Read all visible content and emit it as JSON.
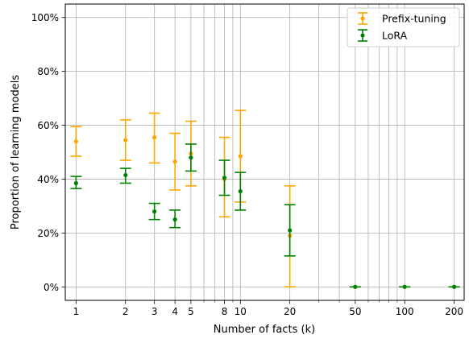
{
  "chart_data": {
    "type": "scatter",
    "title": "",
    "xlabel": "Number of facts (k)",
    "ylabel": "Proportion of learning models",
    "xscale": "log",
    "xlim": [
      0.86,
      230
    ],
    "ylim": [
      -5,
      105
    ],
    "xticks": [
      1,
      2,
      3,
      4,
      5,
      8,
      10,
      20,
      50,
      100,
      200
    ],
    "xtick_labels": [
      "1",
      "2",
      "3",
      "4",
      "5",
      "8",
      "10",
      "20",
      "50",
      "100",
      "200"
    ],
    "yticks": [
      0,
      20,
      40,
      60,
      80,
      100
    ],
    "ytick_labels": [
      "0%",
      "20%",
      "40%",
      "60%",
      "80%",
      "100%"
    ],
    "grid": true,
    "legend_position": "top-right",
    "series": [
      {
        "name": "Prefix-tuning",
        "color": "#ffa500",
        "x": [
          1,
          2,
          3,
          4,
          5,
          8,
          10,
          20
        ],
        "y": [
          54,
          54.5,
          55.5,
          46.5,
          49.5,
          40,
          48.5,
          19
        ],
        "err_low": [
          48.5,
          47,
          46,
          36,
          37.5,
          26,
          31.5,
          0
        ],
        "err_high": [
          59.5,
          62,
          64.5,
          57,
          61.5,
          55.5,
          65.5,
          37.5
        ]
      },
      {
        "name": "LoRA",
        "color": "#008000",
        "x": [
          1,
          2,
          3,
          4,
          5,
          8,
          10,
          20,
          50,
          100,
          200
        ],
        "y": [
          38.5,
          41.5,
          28,
          25,
          48,
          40.5,
          35.5,
          21,
          0,
          0,
          0
        ],
        "err_low": [
          36.5,
          38.5,
          25,
          22,
          43,
          34,
          28.5,
          11.5,
          0,
          0,
          0
        ],
        "err_high": [
          41,
          44,
          31,
          28.5,
          53,
          47,
          42.5,
          30.5,
          0,
          0,
          0
        ]
      }
    ]
  }
}
